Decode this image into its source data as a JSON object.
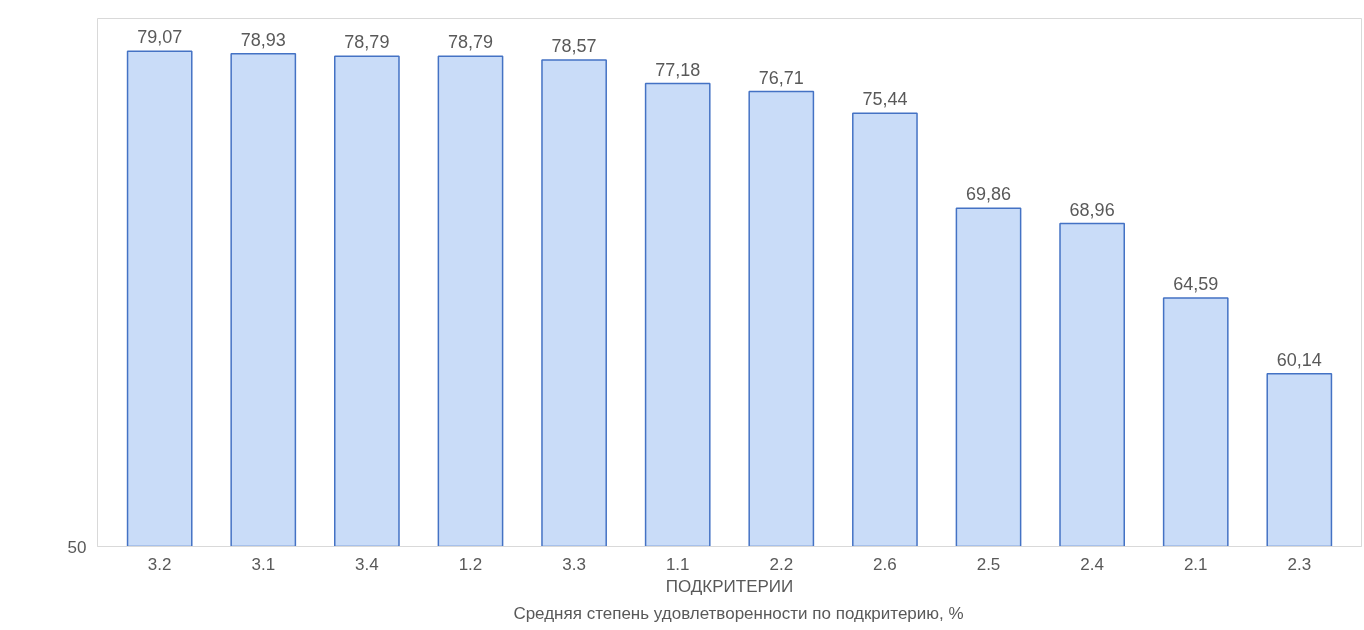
{
  "chart_data": {
    "type": "bar",
    "categories": [
      "3.2",
      "3.1",
      "3.4",
      "1.2",
      "3.3",
      "1.1",
      "2.2",
      "2.6",
      "2.5",
      "2.4",
      "2.1",
      "2.3"
    ],
    "series": [
      {
        "name": "Средняя степень удовлетворенности по подкритерию, %",
        "color": "#c9dcf8",
        "values": [
          79.07,
          78.93,
          78.79,
          78.79,
          78.57,
          77.18,
          76.71,
          75.44,
          69.86,
          68.96,
          64.59,
          60.14
        ],
        "value_labels": [
          "79,07",
          "78,93",
          "78,79",
          "78,79",
          "78,57",
          "77,18",
          "76,71",
          "75,44",
          "69,86",
          "68,96",
          "64,59",
          "60,14"
        ]
      }
    ],
    "xlabel": "ПОДКРИТЕРИИ",
    "ylim": [
      50,
      81
    ],
    "annotations": [
      "50"
    ],
    "data_labels": true,
    "grid": false,
    "legend": "bottom"
  }
}
